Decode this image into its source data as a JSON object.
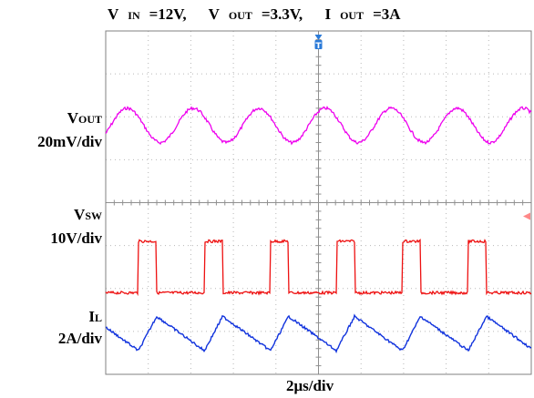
{
  "title": {
    "vin_label": "V",
    "vin_sub": "IN",
    "vin_value": "=12V,",
    "vout_label": "V",
    "vout_sub": "OUT",
    "vout_value": "=3.3V,",
    "iout_label": "I",
    "iout_sub": "OUT",
    "iout_value": "=3A"
  },
  "channels": {
    "vout": {
      "name": "V",
      "sub": "OUT",
      "scale": "20mV/div",
      "color": "#ee00ee"
    },
    "vsw": {
      "name": "V",
      "sub": "SW",
      "scale": "10V/div",
      "color": "#ee1111"
    },
    "il": {
      "name": "I",
      "sub": "L",
      "scale": "2A/div",
      "color": "#1133dd"
    }
  },
  "timebase": "2μs/div",
  "trigger_marker": "T",
  "chart_data": {
    "type": "line",
    "grid": true,
    "divisions": {
      "x": 10,
      "y": 8
    },
    "x_unit": "μs",
    "xlim": [
      0,
      20
    ],
    "switching_period_us": 3.1,
    "duty_cycle": 0.275,
    "series": [
      {
        "name": "VOUT",
        "shape": "sinusoidal ripple",
        "amplitude_div": 0.4,
        "period_us": 3.1
      },
      {
        "name": "VSW",
        "shape": "square pulse",
        "high_div": 1.2,
        "low_div": 0
      },
      {
        "name": "IL",
        "shape": "triangular ripple",
        "amplitude_div": 0.4,
        "period_us": 3.1
      }
    ]
  }
}
